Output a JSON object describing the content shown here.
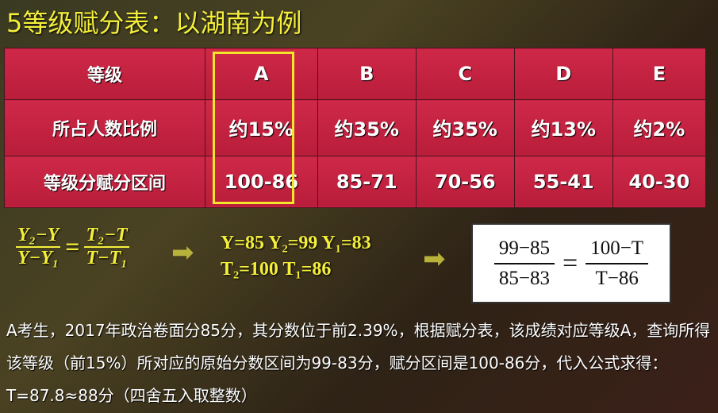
{
  "title": "5等级赋分表：以湖南为例",
  "table": {
    "rows": [
      {
        "label": "等级",
        "cells": [
          "A",
          "B",
          "C",
          "D",
          "E"
        ]
      },
      {
        "label": "所占人数比例",
        "cells": [
          "约15%",
          "约35%",
          "约35%",
          "约13%",
          "约2%"
        ]
      },
      {
        "label": "等级分赋分区间",
        "cells": [
          "100-86",
          "85-71",
          "70-56",
          "55-41",
          "40-30"
        ]
      }
    ],
    "highlight_column": "A",
    "highlight_color": "#f2e52c",
    "cell_color": "#c2213f"
  },
  "formula": {
    "left_num": "Y₂−Y",
    "left_den": "Y−Y₁",
    "right_num": "T₂−T",
    "right_den": "T−T₁",
    "values_line1": "Y=85 Y₂=99 Y₁=83",
    "values_line2": "T₂=100 T₁=86",
    "result_left_num": "99−85",
    "result_left_den": "85−83",
    "result_right_num": "100−T",
    "result_right_den": "T−86"
  },
  "explanation": "A考生，2017年政治卷面分85分，其分数位于前2.39%，根据赋分表，该成绩对应等级A，查询所得该等级（前15%）所对应的原始分数区间为99-83分，赋分区间是100-86分，代入公式求得：T=87.8≈88分（四舍五入取整数）"
}
